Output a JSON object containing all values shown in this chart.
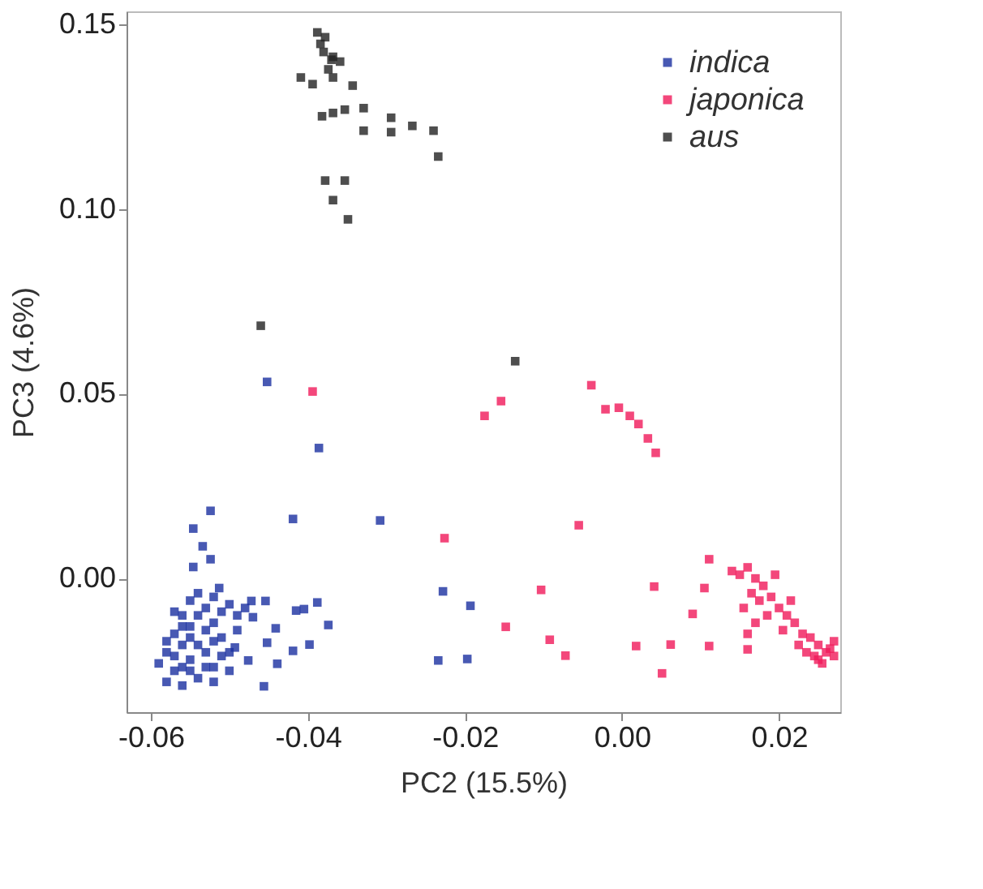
{
  "chart_data": {
    "type": "scatter",
    "xlabel": "PC2 (15.5%)",
    "ylabel": "PC3 (4.6%)",
    "xlim": [
      -0.0631,
      0.0278
    ],
    "ylim": [
      -0.0362,
      0.1535
    ],
    "xticks": [
      {
        "value": -0.06,
        "label": "-0.06"
      },
      {
        "value": -0.04,
        "label": "-0.04"
      },
      {
        "value": -0.02,
        "label": "-0.02"
      },
      {
        "value": 0,
        "label": "0.00"
      },
      {
        "value": 0.02,
        "label": "0.02"
      }
    ],
    "yticks": [
      {
        "value": 0,
        "label": "0.00"
      },
      {
        "value": 0.05,
        "label": "0.05"
      },
      {
        "value": 0.1,
        "label": "0.10"
      },
      {
        "value": 0.15,
        "label": "0.15"
      }
    ],
    "grid": false,
    "legend": "top right",
    "marker": "square",
    "series": [
      {
        "name": "indica",
        "color": "#1a2fa0",
        "x": [
          -0.0452,
          -0.0386,
          -0.0524,
          -0.0546,
          -0.0534,
          -0.0524,
          -0.0546,
          -0.0419,
          -0.0308,
          -0.0228,
          -0.0193,
          -0.0234,
          -0.0197,
          -0.0472,
          -0.0454,
          -0.0415,
          -0.0405,
          -0.0388,
          -0.0374,
          -0.0441,
          -0.0452,
          -0.0398,
          -0.0419,
          -0.0439,
          -0.0456,
          -0.0476,
          -0.047,
          -0.0513,
          -0.0493,
          -0.058,
          -0.057,
          -0.058,
          -0.057,
          -0.056,
          -0.055,
          -0.054,
          -0.053,
          -0.052,
          -0.051,
          -0.05,
          -0.052,
          -0.054,
          -0.056,
          -0.055,
          -0.054,
          -0.053,
          -0.055,
          -0.056,
          -0.057,
          -0.053,
          -0.052,
          -0.05,
          -0.049,
          -0.048,
          -0.051,
          -0.049,
          -0.05,
          -0.052,
          -0.055,
          -0.059,
          -0.058,
          -0.056,
          -0.054,
          -0.053,
          -0.051,
          -0.056,
          -0.057,
          -0.055,
          -0.052
        ],
        "values": [
          0.0532,
          0.0353,
          0.0183,
          0.0135,
          0.0087,
          0.0052,
          0.0031,
          0.0161,
          0.0157,
          -0.0035,
          -0.0074,
          -0.0222,
          -0.0218,
          -0.0061,
          -0.0061,
          -0.0087,
          -0.0083,
          -0.0065,
          -0.0126,
          -0.0135,
          -0.0174,
          -0.0179,
          -0.0196,
          -0.0231,
          -0.0292,
          -0.0222,
          -0.0105,
          -0.0026,
          -0.0187,
          -0.028,
          -0.025,
          -0.02,
          -0.015,
          -0.01,
          -0.006,
          -0.004,
          -0.008,
          -0.012,
          -0.016,
          -0.02,
          -0.024,
          -0.027,
          -0.029,
          -0.022,
          -0.018,
          -0.014,
          -0.013,
          -0.018,
          -0.021,
          -0.02,
          -0.005,
          -0.007,
          -0.01,
          -0.008,
          -0.009,
          -0.014,
          -0.025,
          -0.028,
          -0.025,
          -0.023,
          -0.017,
          -0.013,
          -0.01,
          -0.024,
          -0.021,
          -0.024,
          -0.009,
          -0.016,
          -0.017
        ]
      },
      {
        "name": "japonica",
        "color": "#f0195a",
        "x": [
          -0.0394,
          -0.0175,
          -0.0154,
          -0.0039,
          -0.0021,
          -0.0004,
          0.001,
          0.0021,
          0.0033,
          0.0043,
          -0.0055,
          -0.0226,
          -0.0103,
          -0.0148,
          -0.0092,
          -0.0072,
          0.0041,
          0.0018,
          0.0051,
          0.0062,
          0.0111,
          0.009,
          0.0105,
          0.0111,
          0.016,
          0.014,
          0.015,
          0.016,
          0.017,
          0.018,
          0.0165,
          0.0175,
          0.019,
          0.02,
          0.0185,
          0.021,
          0.022,
          0.0205,
          0.023,
          0.024,
          0.0225,
          0.025,
          0.026,
          0.0245,
          0.027,
          0.0255,
          0.0235,
          0.0265,
          0.0155,
          0.017,
          0.0215,
          0.0195,
          0.016,
          0.027,
          0.025
        ],
        "values": [
          0.0506,
          0.044,
          0.048,
          0.0523,
          0.0458,
          0.0462,
          0.044,
          0.0418,
          0.0379,
          0.034,
          0.0144,
          0.0109,
          -0.0031,
          -0.0131,
          -0.0166,
          -0.0209,
          -0.0022,
          -0.0183,
          -0.0257,
          -0.0179,
          -0.0183,
          -0.0096,
          -0.0026,
          0.0052,
          -0.0192,
          0.002,
          0.001,
          0.003,
          0.0,
          -0.002,
          -0.004,
          -0.006,
          -0.005,
          -0.008,
          -0.01,
          -0.01,
          -0.012,
          -0.014,
          -0.015,
          -0.016,
          -0.018,
          -0.018,
          -0.02,
          -0.021,
          -0.021,
          -0.023,
          -0.02,
          -0.019,
          -0.008,
          -0.012,
          -0.006,
          0.001,
          -0.015,
          -0.017,
          -0.022
        ]
      },
      {
        "name": "aus",
        "color": "#222222",
        "x": [
          -0.0388,
          -0.038,
          -0.037,
          -0.0359,
          -0.0384,
          -0.0374,
          -0.0368,
          -0.0409,
          -0.0394,
          -0.0343,
          -0.0382,
          -0.0368,
          -0.0353,
          -0.0329,
          -0.0329,
          -0.0294,
          -0.0294,
          -0.0267,
          -0.024,
          -0.0234,
          -0.0378,
          -0.0353,
          -0.0368,
          -0.0349,
          -0.046,
          -0.0136,
          -0.0378,
          -0.0368
        ],
        "values": [
          0.1478,
          0.1425,
          0.1404,
          0.1399,
          0.1447,
          0.1378,
          0.1356,
          0.1356,
          0.1338,
          0.1334,
          0.1251,
          0.126,
          0.1269,
          0.1273,
          0.1212,
          0.1247,
          0.1208,
          0.1225,
          0.1212,
          0.1142,
          0.1077,
          0.1077,
          0.1024,
          0.0972,
          0.0684,
          0.0588,
          0.1465,
          0.1412
        ]
      }
    ]
  }
}
